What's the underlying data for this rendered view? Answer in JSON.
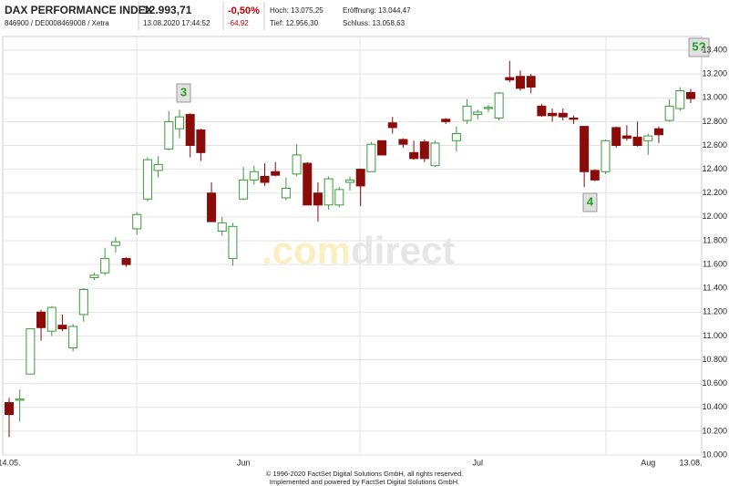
{
  "header": {
    "title": "DAX PERFORMANCE INDEX",
    "subtitle": "846900 / DE0008469008 / Xetra",
    "price": "12.993,71",
    "timestamp": "13.08.2020 17:44:52",
    "change_pct": "-0,50%",
    "change_abs": "-64,92",
    "high": "Hoch: 13.075,25",
    "open": "Eröffnung: 13.044,47",
    "low": "Tief: 12.956,30",
    "close": "Schluss: 13.058,63"
  },
  "chart_data": {
    "type": "candlestick",
    "categories": [
      "14.05.",
      null,
      null,
      null,
      null,
      null,
      null,
      null,
      null,
      null,
      null,
      null,
      null,
      null,
      null,
      null,
      null,
      null,
      null,
      null,
      null,
      null,
      "Jun",
      null,
      null,
      null,
      null,
      null,
      null,
      null,
      null,
      null,
      null,
      null,
      null,
      null,
      null,
      null,
      null,
      null,
      null,
      null,
      null,
      null,
      "Jul",
      null,
      null,
      null,
      null,
      null,
      null,
      null,
      null,
      null,
      null,
      null,
      null,
      null,
      null,
      null,
      "Aug",
      null,
      null,
      null,
      "13.08."
    ],
    "open": [
      10440,
      10460,
      10680,
      11200,
      11040,
      11090,
      10900,
      11180,
      11490,
      11530,
      11760,
      11650,
      11900,
      12150,
      12390,
      12570,
      12740,
      12860,
      12730,
      12200,
      11880,
      11650,
      12150,
      12310,
      12340,
      12380,
      12160,
      12360,
      12450,
      12200,
      12100,
      12100,
      12290,
      12400,
      12380,
      12640,
      12790,
      12650,
      12540,
      12630,
      12430,
      12820,
      12640,
      12810,
      12860,
      12910,
      12830,
      13170,
      13180,
      13180,
      12930,
      12870,
      12870,
      12830,
      12760,
      12390,
      12380,
      12750,
      12680,
      12670,
      12640,
      12740,
      12810,
      12910,
      13044.47
    ],
    "high": [
      10480,
      10550,
      11060,
      11220,
      11250,
      11180,
      11100,
      11400,
      11530,
      11740,
      11830,
      11660,
      12040,
      12500,
      12510,
      12890,
      12900,
      12870,
      12740,
      12290,
      12000,
      11950,
      12420,
      12430,
      12450,
      12460,
      12330,
      12610,
      12460,
      12290,
      12340,
      12250,
      12340,
      12400,
      12630,
      12640,
      12840,
      12660,
      12640,
      12650,
      12640,
      12830,
      12760,
      12990,
      12900,
      12940,
      13050,
      13310,
      13230,
      13200,
      12950,
      12910,
      12910,
      12850,
      12760,
      12400,
      12650,
      12760,
      12770,
      12800,
      12700,
      12760,
      12990,
      13090,
      13075.25
    ],
    "low": [
      10150,
      10280,
      10680,
      10960,
      11000,
      11040,
      10870,
      11120,
      11470,
      11510,
      11700,
      11580,
      11850,
      12130,
      12330,
      12560,
      12660,
      12500,
      12470,
      11960,
      11840,
      11590,
      12140,
      12270,
      12260,
      12340,
      12140,
      12340,
      12100,
      11960,
      12060,
      12080,
      12220,
      12090,
      12380,
      12520,
      12700,
      12580,
      12480,
      12460,
      12420,
      12780,
      12550,
      12780,
      12820,
      12880,
      12810,
      13130,
      13060,
      13040,
      12840,
      12800,
      12810,
      12780,
      12250,
      12300,
      12360,
      12580,
      12640,
      12590,
      12520,
      12620,
      12800,
      12890,
      12956.3
    ],
    "close": [
      10340,
      10470,
      11060,
      11070,
      11240,
      11060,
      11080,
      11390,
      11510,
      11650,
      11790,
      11600,
      12020,
      12480,
      12440,
      12800,
      12840,
      12600,
      12540,
      11960,
      11950,
      11920,
      12310,
      12380,
      12290,
      12350,
      12240,
      12520,
      12100,
      12100,
      12320,
      12230,
      12310,
      12260,
      12610,
      12520,
      12750,
      12610,
      12490,
      12490,
      12620,
      12800,
      12700,
      12930,
      12880,
      12920,
      13040,
      13150,
      13080,
      13090,
      12850,
      12850,
      12840,
      12820,
      12380,
      12310,
      12640,
      12600,
      12660,
      12600,
      12680,
      12690,
      12930,
      13060,
      12993.71
    ],
    "up_color": "#3a9a3a",
    "down_color": "#8b0a0a",
    "ylim": [
      10000,
      13500
    ],
    "yticks": [
      {
        "value": 10000,
        "label": "10.000"
      },
      {
        "value": 10200,
        "label": "10.200"
      },
      {
        "value": 10400,
        "label": "10.400"
      },
      {
        "value": 10600,
        "label": "10.600"
      },
      {
        "value": 10800,
        "label": "10.800"
      },
      {
        "value": 11000,
        "label": "11.000"
      },
      {
        "value": 11200,
        "label": "11.200"
      },
      {
        "value": 11400,
        "label": "11.400"
      },
      {
        "value": 11600,
        "label": "11.600"
      },
      {
        "value": 11800,
        "label": "11.800"
      },
      {
        "value": 12000,
        "label": "12.000"
      },
      {
        "value": 12200,
        "label": "12.200"
      },
      {
        "value": 12400,
        "label": "12.400"
      },
      {
        "value": 12600,
        "label": "12.600"
      },
      {
        "value": 12800,
        "label": "12.800"
      },
      {
        "value": 13000,
        "label": "13.000"
      },
      {
        "value": 13200,
        "label": "13.200"
      },
      {
        "value": 13400,
        "label": "13.400"
      }
    ],
    "grid": true,
    "annotations": [
      "3",
      "4",
      "5?"
    ],
    "watermark": {
      "left": ".com",
      "right": "direct"
    },
    "footer": [
      "© 1996-2020 FactSet Digital Solutions GmbH, all rights reserved.",
      "Implemented and powered by FactSet Digital Solutions GmbH."
    ]
  }
}
